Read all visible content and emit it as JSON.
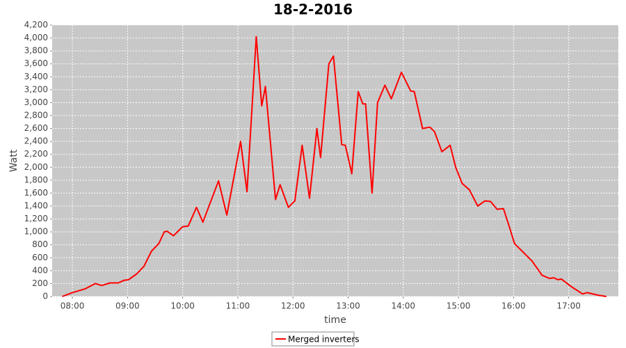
{
  "chart_data": {
    "type": "line",
    "title": "18-2-2016",
    "x_label": "time",
    "y_label": "Watt",
    "x": [
      "07:49",
      "08:00",
      "08:14",
      "08:25",
      "08:32",
      "08:41",
      "08:50",
      "08:56",
      "09:01",
      "09:10",
      "09:18",
      "09:26",
      "09:34",
      "09:40",
      "09:43",
      "09:50",
      "10:00",
      "10:06",
      "10:15",
      "10:22",
      "10:39",
      "10:48",
      "11:03",
      "11:10",
      "11:20",
      "11:26",
      "11:30",
      "11:41",
      "11:46",
      "11:55",
      "12:02",
      "12:10",
      "12:18",
      "12:26",
      "12:30",
      "12:39",
      "12:44",
      "12:53",
      "12:57",
      "13:04",
      "13:11",
      "13:16",
      "13:19",
      "13:26",
      "13:32",
      "13:40",
      "13:47",
      "13:58",
      "14:08",
      "14:12",
      "14:21",
      "14:29",
      "14:34",
      "14:42",
      "14:51",
      "14:57",
      "15:04",
      "15:12",
      "15:21",
      "15:29",
      "15:35",
      "15:42",
      "15:49",
      "15:56",
      "16:01",
      "16:20",
      "16:31",
      "16:39",
      "16:44",
      "16:48",
      "16:52",
      "17:02",
      "17:15",
      "17:20",
      "17:32",
      "17:41"
    ],
    "series": [
      {
        "name": "Merged inverters",
        "color": "#ff0000",
        "values": [
          0,
          60,
          120,
          200,
          170,
          210,
          210,
          250,
          260,
          350,
          470,
          700,
          820,
          1000,
          1010,
          940,
          1080,
          1090,
          1380,
          1150,
          1790,
          1260,
          2400,
          1620,
          4020,
          2950,
          3250,
          1500,
          1730,
          1380,
          1480,
          2340,
          1520,
          2600,
          2150,
          3600,
          3720,
          2350,
          2340,
          1900,
          3170,
          2980,
          2980,
          1600,
          3000,
          3270,
          3060,
          3470,
          3180,
          3170,
          2600,
          2620,
          2550,
          2240,
          2340,
          2000,
          1750,
          1650,
          1400,
          1480,
          1470,
          1350,
          1360,
          1050,
          820,
          550,
          330,
          280,
          290,
          260,
          270,
          160,
          40,
          60,
          20,
          0
        ]
      }
    ],
    "xlim": [
      "07:38",
      "17:54"
    ],
    "xticks": [
      "08:00",
      "09:00",
      "10:00",
      "11:00",
      "12:00",
      "13:00",
      "14:00",
      "15:00",
      "16:00",
      "17:00"
    ],
    "ylim": [
      0,
      4200
    ],
    "yticks": [
      0,
      200,
      400,
      600,
      800,
      {
        "value": 1000,
        "label": "1,000"
      },
      {
        "value": 1200,
        "label": "1,200"
      },
      {
        "value": 1400,
        "label": "1,400"
      },
      {
        "value": 1600,
        "label": "1,600"
      },
      {
        "value": 1800,
        "label": "1,800"
      },
      {
        "value": 2000,
        "label": "2,000"
      },
      {
        "value": 2200,
        "label": "2,200"
      },
      {
        "value": 2400,
        "label": "2,400"
      },
      {
        "value": 2600,
        "label": "2,600"
      },
      {
        "value": 2800,
        "label": "2,800"
      },
      {
        "value": 3000,
        "label": "3,000"
      },
      {
        "value": 3200,
        "label": "3,200"
      },
      {
        "value": 3400,
        "label": "3,400"
      },
      {
        "value": 3600,
        "label": "3,600"
      },
      {
        "value": 3800,
        "label": "3,800"
      },
      {
        "value": 4000,
        "label": "4,000"
      },
      {
        "value": 4200,
        "label": "4,200"
      }
    ],
    "grid": true,
    "legend": "bottom"
  }
}
